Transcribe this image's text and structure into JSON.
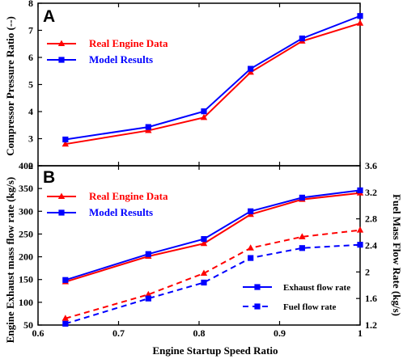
{
  "chart_data": [
    {
      "panel_label": "A",
      "type": "line",
      "x": [
        0.634,
        0.737,
        0.806,
        0.864,
        0.928,
        1.0
      ],
      "ylabel": "Compressor Pressure Ratio (--)",
      "ylim": [
        2,
        8
      ],
      "yticks": [
        2,
        3,
        4,
        5,
        6,
        7,
        8
      ],
      "xlim": [
        0.6,
        1.0
      ],
      "series": [
        {
          "name": "Real Engine Data",
          "color": "#ff0000",
          "marker": "triangle",
          "values": [
            2.8,
            3.3,
            3.78,
            5.45,
            6.6,
            7.26
          ]
        },
        {
          "name": "Model Results",
          "color": "#0000ff",
          "marker": "square",
          "values": [
            2.97,
            3.43,
            4.01,
            5.58,
            6.7,
            7.53
          ]
        }
      ],
      "legend": "upper-left"
    },
    {
      "panel_label": "B",
      "type": "line",
      "x": [
        0.634,
        0.737,
        0.806,
        0.864,
        0.928,
        1.0
      ],
      "xlabel": "Engine Startup Speed Ratio",
      "xlim": [
        0.6,
        1.0
      ],
      "xticks": [
        "0.6",
        "0.7",
        "0.8",
        "0.9",
        "1"
      ],
      "ylabel": "Engine Exhaust mass flow rate (kg/s)",
      "ylim": [
        50,
        400
      ],
      "yticks": [
        50,
        100,
        150,
        200,
        250,
        300,
        350,
        400
      ],
      "y2label": "Fuel Mass Flow Rate (kg/s)",
      "y2lim": [
        1.2,
        3.6
      ],
      "y2ticks": [
        "1.2",
        "1.6",
        "2",
        "2.4",
        "2.8",
        "3.2",
        "3.6"
      ],
      "series": [
        {
          "name": "Real Engine Data",
          "color": "#ff0000",
          "marker": "triangle",
          "axis": "left",
          "style": "solid",
          "values": [
            145,
            201,
            229,
            293,
            326,
            340
          ]
        },
        {
          "name": "Model Results",
          "color": "#0000ff",
          "marker": "square",
          "axis": "left",
          "style": "solid",
          "values": [
            149,
            206,
            239,
            300,
            330,
            346
          ]
        },
        {
          "name": "",
          "color": "#ff0000",
          "marker": "triangle",
          "axis": "right",
          "style": "dashed",
          "values": [
            1.3,
            1.66,
            1.98,
            2.36,
            2.53,
            2.63
          ]
        },
        {
          "name": "",
          "color": "#0000ff",
          "marker": "square",
          "axis": "right",
          "style": "dashed",
          "values": [
            1.22,
            1.6,
            1.84,
            2.21,
            2.36,
            2.41
          ]
        }
      ],
      "legend_main": [
        "Real Engine Data",
        "Model Results"
      ],
      "legend_secondary": [
        "Exhaust flow rate",
        "Fuel flow rate"
      ]
    }
  ]
}
